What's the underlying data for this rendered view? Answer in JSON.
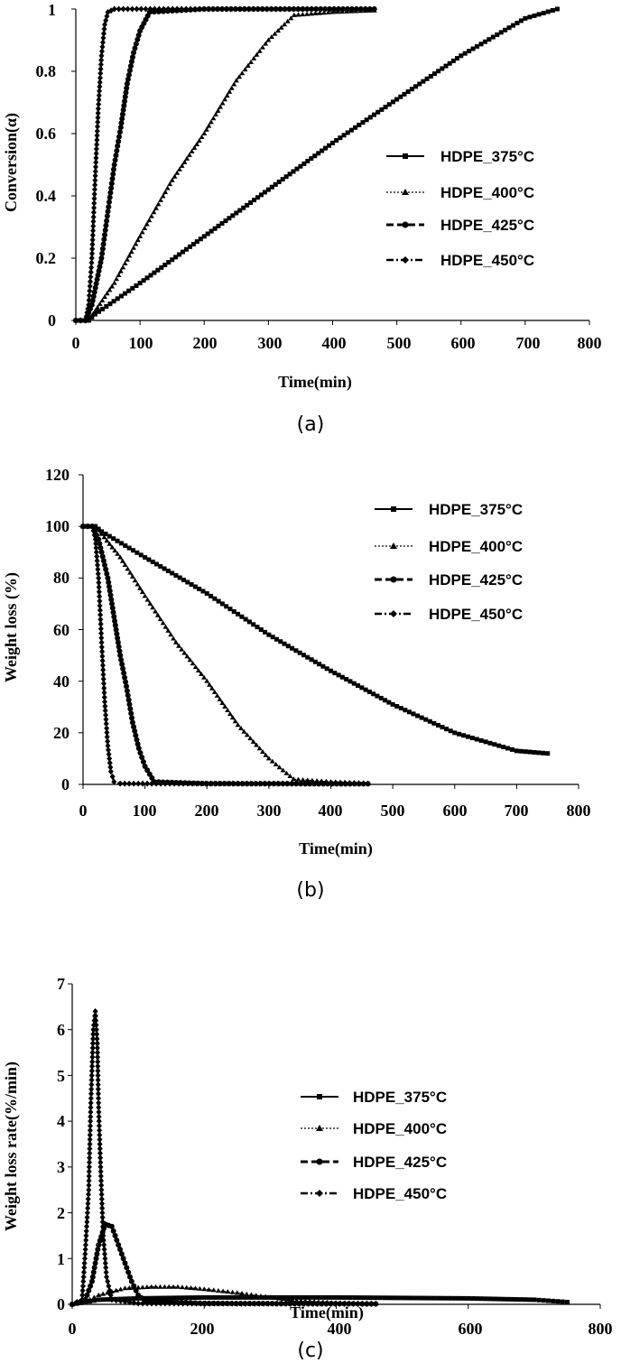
{
  "figure": {
    "panels": [
      "a",
      "b",
      "c"
    ]
  },
  "chart_data": [
    {
      "id": "a",
      "type": "line",
      "caption": "(a)",
      "xlabel": "Time(min)",
      "ylabel": "Conversion(α)",
      "xlim": [
        0,
        800
      ],
      "ylim": [
        0,
        1
      ],
      "xticks": [
        0,
        100,
        200,
        300,
        400,
        500,
        600,
        700,
        800
      ],
      "yticks": [
        0,
        0.2,
        0.4,
        0.6,
        0.8,
        1
      ],
      "ytick_labels": [
        "0",
        "0.2",
        "0.4",
        "0.6",
        "0.8",
        "1"
      ],
      "legend_position": "right",
      "series": [
        {
          "name": "HDPE_375°C",
          "marker": "square",
          "dash": "solid",
          "points": [
            [
              0,
              0
            ],
            [
              20,
              0
            ],
            [
              30,
              0.02
            ],
            [
              100,
              0.12
            ],
            [
              200,
              0.27
            ],
            [
              300,
              0.42
            ],
            [
              400,
              0.57
            ],
            [
              500,
              0.71
            ],
            [
              600,
              0.85
            ],
            [
              700,
              0.97
            ],
            [
              750,
              1.0
            ]
          ]
        },
        {
          "name": "HDPE_400°C",
          "marker": "triangle",
          "dash": "dot",
          "points": [
            [
              0,
              0
            ],
            [
              20,
              0
            ],
            [
              30,
              0.03
            ],
            [
              60,
              0.12
            ],
            [
              100,
              0.27
            ],
            [
              150,
              0.45
            ],
            [
              200,
              0.6
            ],
            [
              250,
              0.77
            ],
            [
              300,
              0.9
            ],
            [
              340,
              0.98
            ],
            [
              400,
              0.99
            ],
            [
              465,
              0.995
            ]
          ]
        },
        {
          "name": "HDPE_425°C",
          "marker": "circle",
          "dash": "dash",
          "points": [
            [
              0,
              0
            ],
            [
              15,
              0
            ],
            [
              25,
              0.05
            ],
            [
              40,
              0.2
            ],
            [
              50,
              0.35
            ],
            [
              60,
              0.5
            ],
            [
              70,
              0.62
            ],
            [
              80,
              0.76
            ],
            [
              90,
              0.86
            ],
            [
              100,
              0.93
            ],
            [
              115,
              0.99
            ],
            [
              200,
              1.0
            ],
            [
              465,
              1.0
            ]
          ]
        },
        {
          "name": "HDPE_450°C",
          "marker": "diamond",
          "dash": "dashdot",
          "points": [
            [
              0,
              0
            ],
            [
              15,
              0
            ],
            [
              20,
              0.05
            ],
            [
              25,
              0.2
            ],
            [
              30,
              0.45
            ],
            [
              35,
              0.68
            ],
            [
              40,
              0.85
            ],
            [
              45,
              0.95
            ],
            [
              50,
              0.99
            ],
            [
              60,
              1.0
            ],
            [
              465,
              1.0
            ]
          ]
        }
      ]
    },
    {
      "id": "b",
      "type": "line",
      "caption": "(b)",
      "xlabel": "Time(min)",
      "ylabel": "Weight loss (%)",
      "xlim": [
        0,
        800
      ],
      "ylim": [
        0,
        120
      ],
      "xticks": [
        0,
        100,
        200,
        300,
        400,
        500,
        600,
        700,
        800
      ],
      "yticks": [
        0,
        20,
        40,
        60,
        80,
        100,
        120
      ],
      "ytick_labels": [
        "0",
        "20",
        "40",
        "60",
        "80",
        "100",
        "120"
      ],
      "legend_position": "top-right",
      "series": [
        {
          "name": "HDPE_375°C",
          "marker": "square",
          "dash": "solid",
          "points": [
            [
              0,
              100
            ],
            [
              20,
              100
            ],
            [
              30,
              98
            ],
            [
              100,
              88
            ],
            [
              200,
              74
            ],
            [
              300,
              58
            ],
            [
              400,
              44
            ],
            [
              500,
              31
            ],
            [
              600,
              20
            ],
            [
              700,
              13
            ],
            [
              750,
              12
            ]
          ]
        },
        {
          "name": "HDPE_400°C",
          "marker": "triangle",
          "dash": "dot",
          "points": [
            [
              0,
              100
            ],
            [
              20,
              100
            ],
            [
              30,
              97
            ],
            [
              60,
              88
            ],
            [
              100,
              73
            ],
            [
              150,
              55
            ],
            [
              200,
              40
            ],
            [
              250,
              23
            ],
            [
              300,
              10
            ],
            [
              340,
              2
            ],
            [
              400,
              1
            ],
            [
              460,
              0.5
            ]
          ]
        },
        {
          "name": "HDPE_425°C",
          "marker": "circle",
          "dash": "dash",
          "points": [
            [
              0,
              100
            ],
            [
              15,
              100
            ],
            [
              25,
              95
            ],
            [
              40,
              80
            ],
            [
              50,
              65
            ],
            [
              60,
              50
            ],
            [
              70,
              38
            ],
            [
              80,
              24
            ],
            [
              90,
              14
            ],
            [
              100,
              7
            ],
            [
              115,
              1
            ],
            [
              200,
              0.3
            ],
            [
              460,
              0.2
            ]
          ]
        },
        {
          "name": "HDPE_450°C",
          "marker": "diamond",
          "dash": "dashdot",
          "points": [
            [
              0,
              100
            ],
            [
              15,
              100
            ],
            [
              20,
              95
            ],
            [
              25,
              80
            ],
            [
              30,
              55
            ],
            [
              35,
              32
            ],
            [
              40,
              15
            ],
            [
              45,
              5
            ],
            [
              50,
              1
            ],
            [
              60,
              0.3
            ],
            [
              460,
              0.3
            ]
          ]
        }
      ]
    },
    {
      "id": "c",
      "type": "line",
      "caption": "(c)",
      "xlabel": "Time(min)",
      "ylabel": "Weight loss rate(%/min)",
      "xlim": [
        0,
        800
      ],
      "ylim": [
        0,
        7
      ],
      "xticks": [
        0,
        200,
        400,
        600,
        800
      ],
      "yticks": [
        0,
        1,
        2,
        3,
        4,
        5,
        6,
        7
      ],
      "ytick_labels": [
        "0",
        "1",
        "2",
        "3",
        "4",
        "5",
        "6",
        "7"
      ],
      "legend_position": "center-right",
      "series": [
        {
          "name": "HDPE_375°C",
          "marker": "square",
          "dash": "solid",
          "points": [
            [
              0,
              0
            ],
            [
              20,
              0.05
            ],
            [
              40,
              0.1
            ],
            [
              100,
              0.13
            ],
            [
              200,
              0.15
            ],
            [
              300,
              0.15
            ],
            [
              400,
              0.15
            ],
            [
              500,
              0.14
            ],
            [
              600,
              0.13
            ],
            [
              700,
              0.1
            ],
            [
              750,
              0.05
            ]
          ]
        },
        {
          "name": "HDPE_400°C",
          "marker": "triangle",
          "dash": "dot",
          "points": [
            [
              0,
              0
            ],
            [
              20,
              0.05
            ],
            [
              40,
              0.2
            ],
            [
              80,
              0.35
            ],
            [
              120,
              0.38
            ],
            [
              160,
              0.38
            ],
            [
              200,
              0.33
            ],
            [
              250,
              0.25
            ],
            [
              300,
              0.15
            ],
            [
              340,
              0.08
            ],
            [
              400,
              0.03
            ],
            [
              460,
              0.02
            ]
          ]
        },
        {
          "name": "HDPE_425°C",
          "marker": "circle",
          "dash": "dash",
          "points": [
            [
              0,
              0
            ],
            [
              20,
              0.1
            ],
            [
              30,
              0.5
            ],
            [
              40,
              1.3
            ],
            [
              50,
              1.75
            ],
            [
              60,
              1.7
            ],
            [
              70,
              1.3
            ],
            [
              80,
              0.9
            ],
            [
              90,
              0.5
            ],
            [
              100,
              0.2
            ],
            [
              110,
              0.08
            ],
            [
              200,
              0.02
            ],
            [
              460,
              0.01
            ]
          ]
        },
        {
          "name": "HDPE_450°C",
          "marker": "diamond",
          "dash": "dashdot",
          "points": [
            [
              0,
              0
            ],
            [
              15,
              0.1
            ],
            [
              20,
              1.2
            ],
            [
              25,
              2.5
            ],
            [
              28,
              4.3
            ],
            [
              32,
              6.0
            ],
            [
              35,
              6.4
            ],
            [
              38,
              5.7
            ],
            [
              40,
              4.3
            ],
            [
              43,
              3.0
            ],
            [
              47,
              1.5
            ],
            [
              52,
              0.6
            ],
            [
              60,
              0.1
            ],
            [
              100,
              0.02
            ],
            [
              460,
              0.01
            ]
          ]
        }
      ]
    }
  ]
}
